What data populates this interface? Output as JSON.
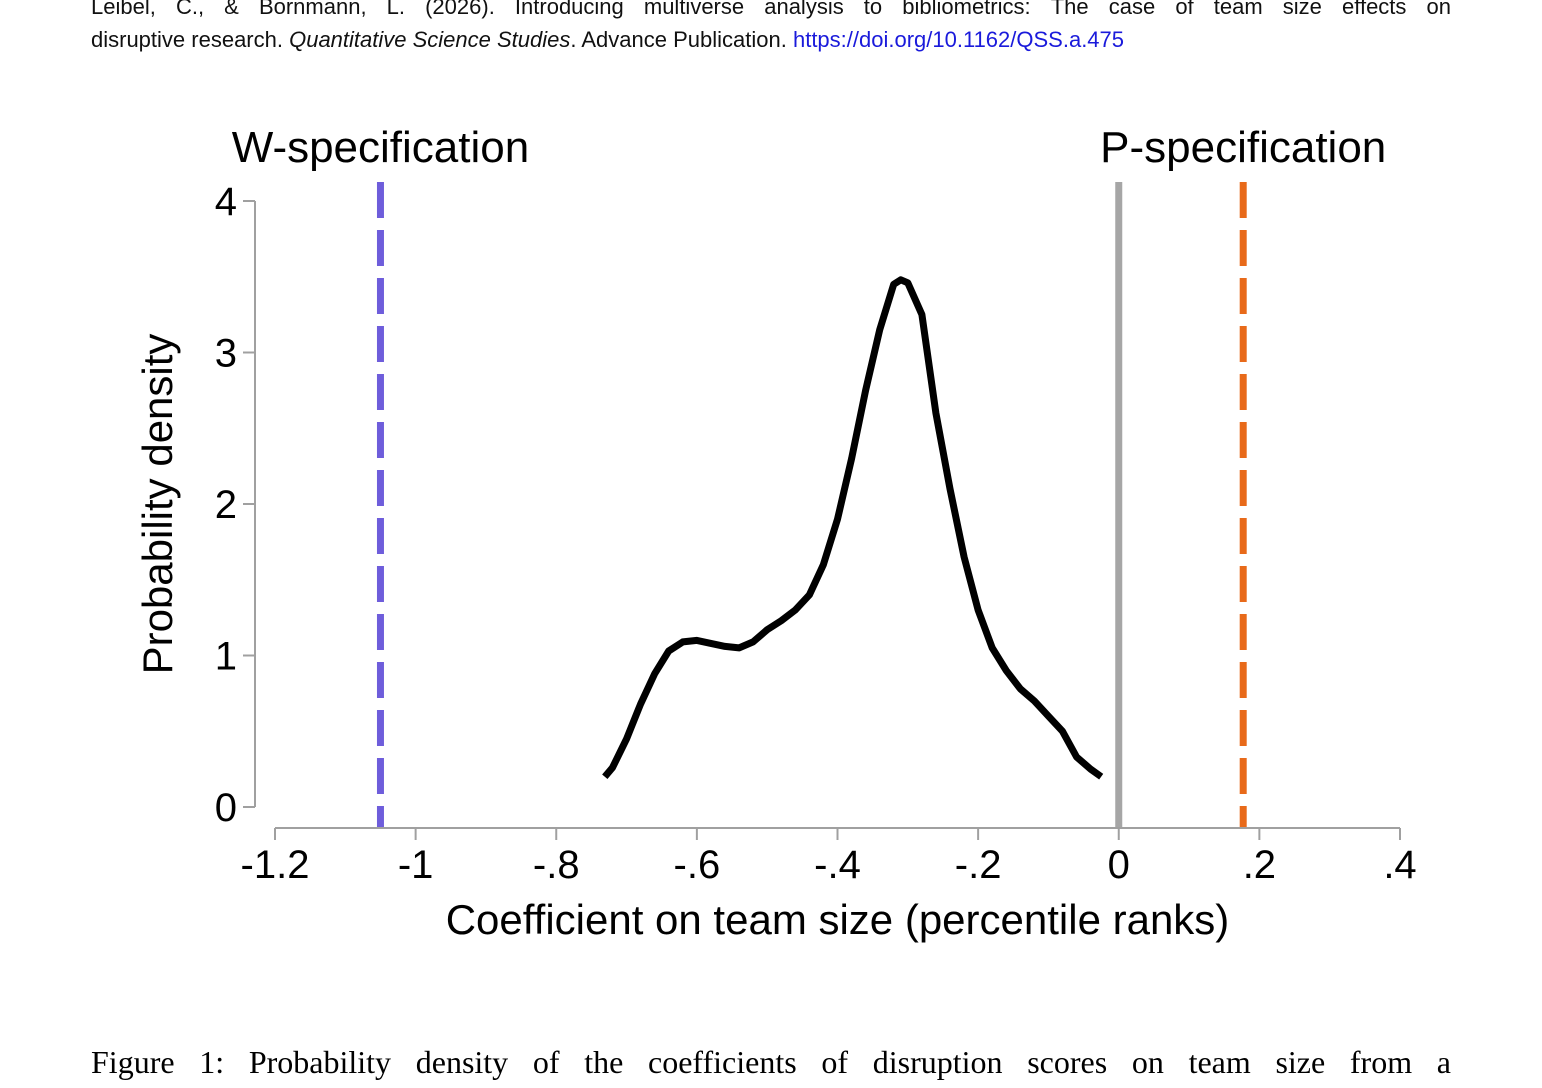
{
  "header": {
    "citation_line1_words": [
      "Leibel,",
      "C.,",
      "&",
      "Bornmann,",
      "L.",
      "(2026).",
      "Introducing",
      "multiverse",
      "analysis",
      "to",
      "bibliometrics:",
      "The",
      "case",
      "of",
      "team",
      "size",
      "effects",
      "on"
    ],
    "citation_line2_start": "disruptive research. ",
    "journal": "Quantitative Science Studies",
    "citation_line2_end": ". Advance Publication. ",
    "doi": "https://doi.org/10.1162/QSS.a.475"
  },
  "caption": "Figure 1: Probability density of the coefficients of disruption scores on team size from a",
  "chart_data": {
    "type": "line",
    "title": "",
    "xlabel": "Coefficient on team size (percentile ranks)",
    "ylabel": "Probability density",
    "xlim": [
      -1.2,
      0.4
    ],
    "ylim": [
      0,
      4
    ],
    "x_ticks": [
      -1.2,
      -1.0,
      -0.8,
      -0.6,
      -0.4,
      -0.2,
      0,
      0.2,
      0.4
    ],
    "x_tick_labels": [
      "-1.2",
      "-1",
      "-.8",
      "-.6",
      "-.4",
      "-.2",
      "0",
      ".2",
      ".4"
    ],
    "y_ticks": [
      0,
      1,
      2,
      3,
      4
    ],
    "y_tick_labels": [
      "0",
      "1",
      "2",
      "3",
      "4"
    ],
    "grid": false,
    "reference_lines": [
      {
        "x": -1.05,
        "label": "W-specification",
        "style": "dashed",
        "color": "#6e5ddb"
      },
      {
        "x": 0.0,
        "label": "",
        "style": "solid",
        "color": "#a6a6a6"
      },
      {
        "x": 0.177,
        "label": "P-specification",
        "style": "dashed",
        "color": "#e86a1a"
      }
    ],
    "series": [
      {
        "color": "#000000",
        "x": [
          -0.731,
          -0.72,
          -0.7,
          -0.68,
          -0.66,
          -0.64,
          -0.62,
          -0.6,
          -0.58,
          -0.56,
          -0.54,
          -0.52,
          -0.5,
          -0.48,
          -0.46,
          -0.44,
          -0.42,
          -0.4,
          -0.38,
          -0.36,
          -0.34,
          -0.32,
          -0.31,
          -0.3,
          -0.28,
          -0.26,
          -0.24,
          -0.22,
          -0.2,
          -0.18,
          -0.16,
          -0.14,
          -0.12,
          -0.1,
          -0.08,
          -0.06,
          -0.04,
          -0.025
        ],
        "y": [
          0.2,
          0.26,
          0.45,
          0.68,
          0.88,
          1.03,
          1.09,
          1.1,
          1.08,
          1.06,
          1.05,
          1.09,
          1.17,
          1.23,
          1.3,
          1.4,
          1.6,
          1.9,
          2.3,
          2.75,
          3.15,
          3.45,
          3.48,
          3.46,
          3.25,
          2.6,
          2.1,
          1.65,
          1.3,
          1.05,
          0.9,
          0.78,
          0.7,
          0.6,
          0.5,
          0.33,
          0.25,
          0.2
        ]
      }
    ]
  }
}
